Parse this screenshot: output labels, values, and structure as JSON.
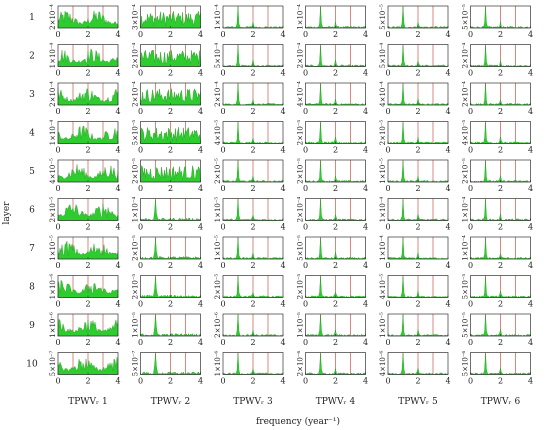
{
  "chart_data": {
    "type": "grid-of-area-spectra",
    "title": "",
    "xlabel": "frequency (year⁻¹)",
    "ylabel": "layer",
    "rows": [
      "1",
      "2",
      "3",
      "4",
      "5",
      "6",
      "7",
      "8",
      "9",
      "10"
    ],
    "columns": [
      "TPWVᵣ 1",
      "TPWVᵣ 2",
      "TPWVᵣ 3",
      "TPWVᵣ 4",
      "TPWVᵣ 5",
      "TPWVᵣ 6"
    ],
    "xlim": [
      0,
      4
    ],
    "xticks": [
      "0",
      "2",
      "4"
    ],
    "reference_lines_x": [
      1,
      2,
      3
    ],
    "series_color": "#2ecc2e",
    "reference_color": "#c0392b",
    "ymax_labels": [
      [
        "2×10⁻⁴",
        "3×10⁻⁴",
        "1×10⁻⁴",
        "1×10⁻⁴",
        "5×10⁻⁵",
        "5×10⁻⁵"
      ],
      [
        "1×10⁻⁴",
        "2×10⁻⁴",
        "5×10⁻⁴",
        "2×10⁻⁴",
        "5×10⁻⁴",
        "2×10⁻⁴"
      ],
      [
        "2×10⁻⁴",
        "2×10⁻⁴",
        "2×10⁻⁴",
        "4×10⁻⁴",
        "4×10⁻⁴",
        "2×10⁻⁴"
      ],
      [
        "1×10⁻⁴",
        "5×10⁻⁵",
        "4×10⁻⁵",
        "2×10⁻⁵",
        "2×10⁻⁵",
        "4×10⁻⁵"
      ],
      [
        "4×10⁻⁵",
        "2×10⁻⁵",
        "2×10⁻⁵",
        "2×10⁻⁵",
        "1×10⁻⁵",
        "2×10⁻⁵"
      ],
      [
        "2×10⁻⁵",
        "1×10⁻⁴",
        "1×10⁻⁵",
        "2×10⁻⁴",
        "1×10⁻⁴",
        "1×10⁻⁴"
      ],
      [
        "1×10⁻⁵",
        "2×10⁻⁵",
        "1×10⁻⁵",
        "5×10⁻⁵",
        "1×10⁻⁴",
        "1×10⁻⁴"
      ],
      [
        "1×10⁻⁶",
        "2×10⁻⁵",
        "2×10⁻⁵",
        "2×10⁻⁵",
        "4×10⁻⁵",
        "5×10⁻⁵"
      ],
      [
        "1×10⁻⁶",
        "1×10⁻⁵",
        "2×10⁻⁶",
        "1×10⁻⁵",
        "1×10⁻⁵",
        "5×10⁻⁵"
      ],
      [
        "5×10⁻⁷",
        "5×10⁻⁷",
        "1×10⁻⁶",
        "2×10⁻⁶",
        "4×10⁻⁶",
        "5×10⁻⁶"
      ]
    ],
    "spectra_shape_by_column": [
      "broadband",
      "broadband-upper-rows",
      "peak-at-1",
      "peak-at-1",
      "peak-at-1",
      "peak-at-1"
    ]
  }
}
